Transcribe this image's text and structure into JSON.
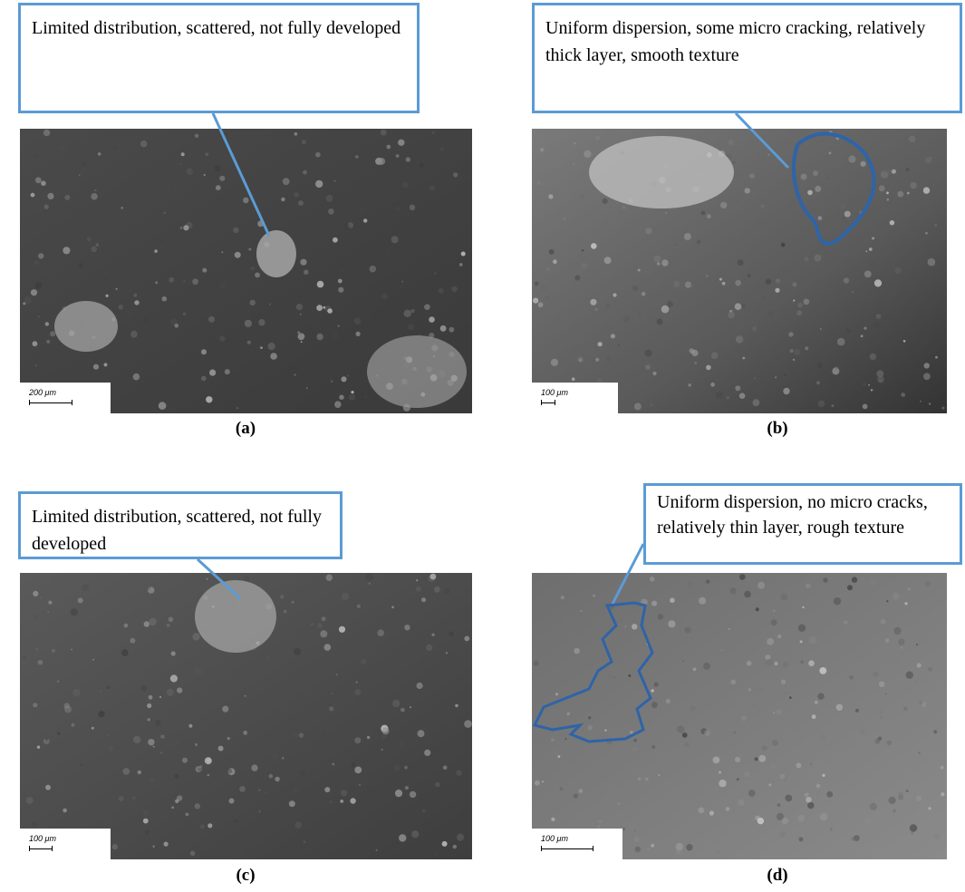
{
  "panels": [
    {
      "label": "(a)",
      "callout": "Limited distribution, scattered, not fully developed",
      "scale_bar": "200 μm"
    },
    {
      "label": "(b)",
      "callout": "Uniform dispersion, some micro cracking, relatively thick layer, smooth texture",
      "scale_bar": "100 μm"
    },
    {
      "label": "(c)",
      "callout": "Limited distribution, scattered, not fully developed",
      "scale_bar": "100 μm"
    },
    {
      "label": "(d)",
      "callout": "Uniform dispersion, no micro cracks, relatively thin layer, rough texture",
      "scale_bar": "100 μm"
    }
  ]
}
